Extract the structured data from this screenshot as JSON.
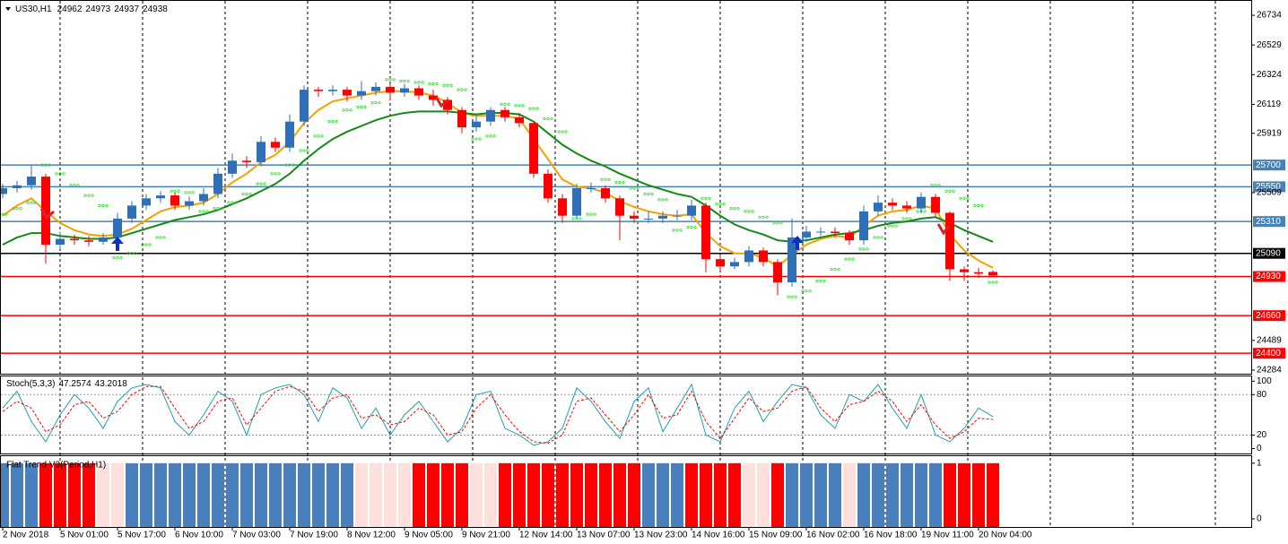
{
  "header": {
    "symbol": "US30,H1",
    "values": [
      24962,
      24973,
      24937,
      24938
    ]
  },
  "chart_data": [
    {
      "type": "candlestick",
      "categories": [
        "2 Nov 2018",
        null,
        null,
        null,
        "5 Nov 01:00",
        null,
        null,
        null,
        "5 Nov 17:00",
        null,
        null,
        null,
        "6 Nov 10:00",
        null,
        null,
        null,
        "7 Nov 03:00",
        null,
        null,
        null,
        "7 Nov 19:00",
        null,
        null,
        null,
        "8 Nov 12:00",
        null,
        null,
        null,
        "9 Nov 05:00",
        null,
        null,
        null,
        "9 Nov 21:00",
        null,
        null,
        null,
        "12 Nov 14:00",
        null,
        null,
        null,
        "13 Nov 07:00",
        null,
        null,
        null,
        "13 Nov 23:00",
        null,
        null,
        null,
        "14 Nov 16:00",
        null,
        null,
        null,
        "15 Nov 09:00",
        null,
        null,
        null,
        "16 Nov 02:00",
        null,
        null,
        null,
        "16 Nov 18:00",
        null,
        null,
        null,
        "19 Nov 11:00",
        null,
        null,
        null,
        "20 Nov 04:00",
        null
      ],
      "open": [
        25500,
        25540,
        25560,
        25620,
        25150,
        25190,
        25180,
        25170,
        25200,
        25330,
        25420,
        25470,
        25490,
        25420,
        25450,
        25500,
        25640,
        25730,
        25720,
        25860,
        25820,
        26000,
        26220,
        26210,
        26220,
        26180,
        26210,
        26240,
        26200,
        26230,
        26180,
        26150,
        26080,
        25960,
        26000,
        26080,
        26030,
        25990,
        25640,
        25470,
        25350,
        25540,
        25540,
        25470,
        25350,
        25330,
        25330,
        25350,
        25350,
        25420,
        25050,
        25000,
        25030,
        25110,
        25030,
        24890,
        25200,
        25240,
        25240,
        25230,
        25180,
        25380,
        25440,
        25420,
        25400,
        25480,
        25370,
        24980,
        24960,
        24962
      ],
      "high": [
        25570,
        25590,
        25700,
        25640,
        25240,
        25220,
        25210,
        25230,
        25370,
        25450,
        25500,
        25520,
        25510,
        25480,
        25540,
        25680,
        25780,
        25760,
        25900,
        25890,
        26050,
        26250,
        26240,
        26250,
        26240,
        26280,
        26270,
        26260,
        26260,
        26250,
        26220,
        26170,
        26100,
        26040,
        26100,
        26100,
        26060,
        26000,
        25670,
        25500,
        25570,
        25580,
        25560,
        25490,
        25380,
        25380,
        25380,
        25390,
        25460,
        25440,
        25080,
        25060,
        25140,
        25130,
        25050,
        25330,
        25280,
        25270,
        25270,
        25250,
        25420,
        25490,
        25470,
        25450,
        25510,
        25500,
        25380,
        25000,
        24990,
        24973
      ],
      "low": [
        25470,
        25510,
        25530,
        25020,
        25120,
        25150,
        25140,
        25150,
        25170,
        25300,
        25390,
        25440,
        25390,
        25390,
        25420,
        25470,
        25610,
        25680,
        25690,
        25790,
        25790,
        25970,
        26170,
        26180,
        26140,
        26150,
        26180,
        26150,
        26170,
        26150,
        26110,
        26050,
        25920,
        25930,
        25970,
        26000,
        25960,
        25610,
        25440,
        25300,
        25330,
        25510,
        25440,
        25180,
        25300,
        25300,
        25300,
        25320,
        25320,
        24960,
        24970,
        24980,
        25000,
        25000,
        24800,
        24860,
        25170,
        25210,
        25200,
        25150,
        25150,
        25350,
        25390,
        25370,
        25370,
        25340,
        24900,
        24900,
        24920,
        24937
      ],
      "close": [
        25540,
        25560,
        25620,
        25150,
        25190,
        25180,
        25170,
        25200,
        25330,
        25420,
        25470,
        25490,
        25420,
        25450,
        25500,
        25640,
        25730,
        25720,
        25860,
        25820,
        26000,
        26220,
        26210,
        26220,
        26180,
        26210,
        26240,
        26200,
        26230,
        26180,
        26150,
        26080,
        25960,
        26000,
        26080,
        26030,
        25990,
        25640,
        25470,
        25350,
        25540,
        25540,
        25470,
        25350,
        25330,
        25330,
        25350,
        25350,
        25420,
        25050,
        25000,
        25030,
        25110,
        25030,
        24890,
        25200,
        25240,
        25240,
        25230,
        25180,
        25380,
        25440,
        25420,
        25400,
        25480,
        25370,
        24980,
        24960,
        24950,
        24938
      ],
      "up_color": "#2f6fb8",
      "down_color": "#ff0000",
      "overlays": [
        {
          "style": "line",
          "color": "#f5a100",
          "values": [
            25350,
            25420,
            25470,
            25380,
            25300,
            25250,
            25220,
            25210,
            25220,
            25260,
            25320,
            25380,
            25410,
            25420,
            25440,
            25500,
            25580,
            25640,
            25720,
            25770,
            25860,
            25990,
            26080,
            26140,
            26160,
            26180,
            26200,
            26210,
            26210,
            26200,
            26180,
            26130,
            26060,
            26040,
            26040,
            26040,
            26020,
            25880,
            25740,
            25600,
            25550,
            25540,
            25510,
            25450,
            25410,
            25380,
            25360,
            25350,
            25360,
            25230,
            25140,
            25090,
            25090,
            25060,
            25000,
            25080,
            25150,
            25190,
            25210,
            25200,
            25280,
            25350,
            25380,
            25390,
            25420,
            25400,
            25220,
            25110,
            25040,
            24990
          ]
        },
        {
          "style": "line",
          "color": "#138a13",
          "values": [
            25150,
            25200,
            25230,
            25230,
            25210,
            25200,
            25190,
            25190,
            25200,
            25230,
            25260,
            25290,
            25320,
            25340,
            25360,
            25390,
            25430,
            25470,
            25520,
            25570,
            25640,
            25730,
            25810,
            25880,
            25930,
            25970,
            26010,
            26040,
            26060,
            26070,
            26070,
            26070,
            26060,
            26050,
            26060,
            26060,
            26050,
            26000,
            25920,
            25840,
            25780,
            25730,
            25690,
            25640,
            25600,
            25560,
            25530,
            25500,
            25480,
            25420,
            25350,
            25290,
            25250,
            25220,
            25180,
            25170,
            25180,
            25200,
            25220,
            25230,
            25250,
            25280,
            25300,
            25310,
            25330,
            25340,
            25300,
            25250,
            25210,
            25170
          ]
        },
        {
          "style": "dots",
          "color": "#33dd33",
          "values": [
            25360,
            25400,
            25440,
            25700,
            25640,
            25560,
            25490,
            25420,
            25060,
            25090,
            25150,
            25200,
            25520,
            25510,
            25380,
            25400,
            25440,
            25500,
            25570,
            25640,
            25700,
            25800,
            25900,
            26000,
            26080,
            26100,
            26130,
            26290,
            26280,
            26270,
            26260,
            26250,
            26220,
            25880,
            25900,
            26120,
            26110,
            26090,
            26020,
            25930,
            25330,
            25360,
            25600,
            25580,
            25540,
            25500,
            25460,
            25250,
            25270,
            25470,
            25430,
            25400,
            25380,
            25340,
            25300,
            24790,
            24830,
            24900,
            24980,
            25050,
            25120,
            25200,
            25280,
            25330,
            25380,
            25560,
            25520,
            25470,
            25420,
            24890
          ]
        }
      ],
      "levels": [
        {
          "value": 25700,
          "color": "#4682b4"
        },
        {
          "value": 25550,
          "color": "#4682b4"
        },
        {
          "value": 25310,
          "color": "#4682b4"
        },
        {
          "value": 25090,
          "color": "#000000"
        },
        {
          "value": 24930,
          "color": "#ff0000"
        },
        {
          "value": 24660,
          "color": "#ff0000"
        },
        {
          "value": 24400,
          "color": "#ff0000"
        }
      ],
      "ylim": [
        24265,
        26821
      ],
      "yticks": [
        26734,
        26529,
        26324,
        26119,
        25919,
        25509,
        24489,
        24284
      ]
    },
    {
      "type": "oscillator",
      "name": "Stoch(5,3,3)",
      "readout": [
        47.2574,
        43.2018
      ],
      "series": [
        {
          "color": "#20a0b0",
          "dash": false,
          "values": [
            60,
            85,
            40,
            10,
            50,
            80,
            60,
            30,
            70,
            90,
            95,
            90,
            40,
            20,
            50,
            85,
            70,
            20,
            80,
            90,
            95,
            80,
            40,
            90,
            75,
            30,
            60,
            20,
            50,
            70,
            40,
            10,
            30,
            80,
            85,
            30,
            20,
            5,
            10,
            30,
            90,
            70,
            40,
            15,
            70,
            90,
            25,
            60,
            95,
            20,
            10,
            60,
            85,
            40,
            70,
            95,
            90,
            50,
            30,
            80,
            70,
            95,
            60,
            30,
            80,
            20,
            10,
            30,
            60,
            47.2574
          ]
        },
        {
          "color": "#ff0000",
          "dash": true,
          "values": [
            55,
            70,
            60,
            25,
            35,
            65,
            70,
            45,
            55,
            80,
            92,
            92,
            60,
            30,
            40,
            70,
            75,
            35,
            60,
            85,
            92,
            85,
            55,
            75,
            80,
            45,
            50,
            35,
            40,
            60,
            50,
            20,
            25,
            60,
            80,
            50,
            25,
            10,
            8,
            20,
            70,
            75,
            50,
            25,
            50,
            80,
            45,
            50,
            85,
            40,
            15,
            45,
            75,
            55,
            60,
            85,
            92,
            60,
            40,
            65,
            70,
            85,
            70,
            40,
            65,
            35,
            15,
            25,
            45,
            43.2018
          ]
        }
      ],
      "levels": [
        80,
        20
      ],
      "ylim": [
        -6,
        107
      ],
      "yticks": [
        100,
        80,
        20,
        0
      ]
    },
    {
      "type": "histogram",
      "name": "Flat Trend V3(Period,H1)",
      "values": [
        1,
        1,
        1,
        1,
        1,
        1,
        1,
        1,
        1,
        1,
        1,
        1,
        1,
        1,
        1,
        1,
        1,
        1,
        1,
        1,
        1,
        1,
        1,
        1,
        1,
        1,
        1,
        1,
        1,
        1,
        1,
        1,
        1,
        1,
        1,
        1,
        1,
        1,
        1,
        1,
        1,
        1,
        1,
        1,
        1,
        1,
        1,
        1,
        1,
        1,
        1,
        1,
        1,
        1,
        1,
        1,
        1,
        1,
        1,
        1,
        1,
        1,
        1,
        1,
        1,
        1,
        1,
        1,
        1,
        1
      ],
      "colors": [
        "#4a80bd",
        "#4a80bd",
        "#4a80bd",
        "#ff0000",
        "#ff0000",
        "#ff0000",
        "#ff0000",
        "#fde0dc",
        "#fde0dc",
        "#4a80bd",
        "#4a80bd",
        "#4a80bd",
        "#4a80bd",
        "#4a80bd",
        "#4a80bd",
        "#4a80bd",
        "#4a80bd",
        "#4a80bd",
        "#4a80bd",
        "#4a80bd",
        "#4a80bd",
        "#4a80bd",
        "#4a80bd",
        "#4a80bd",
        "#4a80bd",
        "#fde0dc",
        "#fde0dc",
        "#fde0dc",
        "#fde0dc",
        "#ff0000",
        "#ff0000",
        "#ff0000",
        "#ff0000",
        "#fde0dc",
        "#fde0dc",
        "#ff0000",
        "#ff0000",
        "#ff0000",
        "#ff0000",
        "#ff0000",
        "#ff0000",
        "#ff0000",
        "#ff0000",
        "#ff0000",
        "#ff0000",
        "#4a80bd",
        "#4a80bd",
        "#4a80bd",
        "#ff0000",
        "#ff0000",
        "#ff0000",
        "#ff0000",
        "#fde0dc",
        "#fde0dc",
        "#ff0000",
        "#4a80bd",
        "#4a80bd",
        "#4a80bd",
        "#4a80bd",
        "#fde0dc",
        "#4a80bd",
        "#4a80bd",
        "#4a80bd",
        "#4a80bd",
        "#4a80bd",
        "#4a80bd",
        "#ff0000",
        "#ff0000",
        "#ff0000",
        "#ff0000"
      ],
      "ylim": [
        -0.13,
        1.11
      ],
      "yticks": [
        1,
        0
      ]
    }
  ]
}
